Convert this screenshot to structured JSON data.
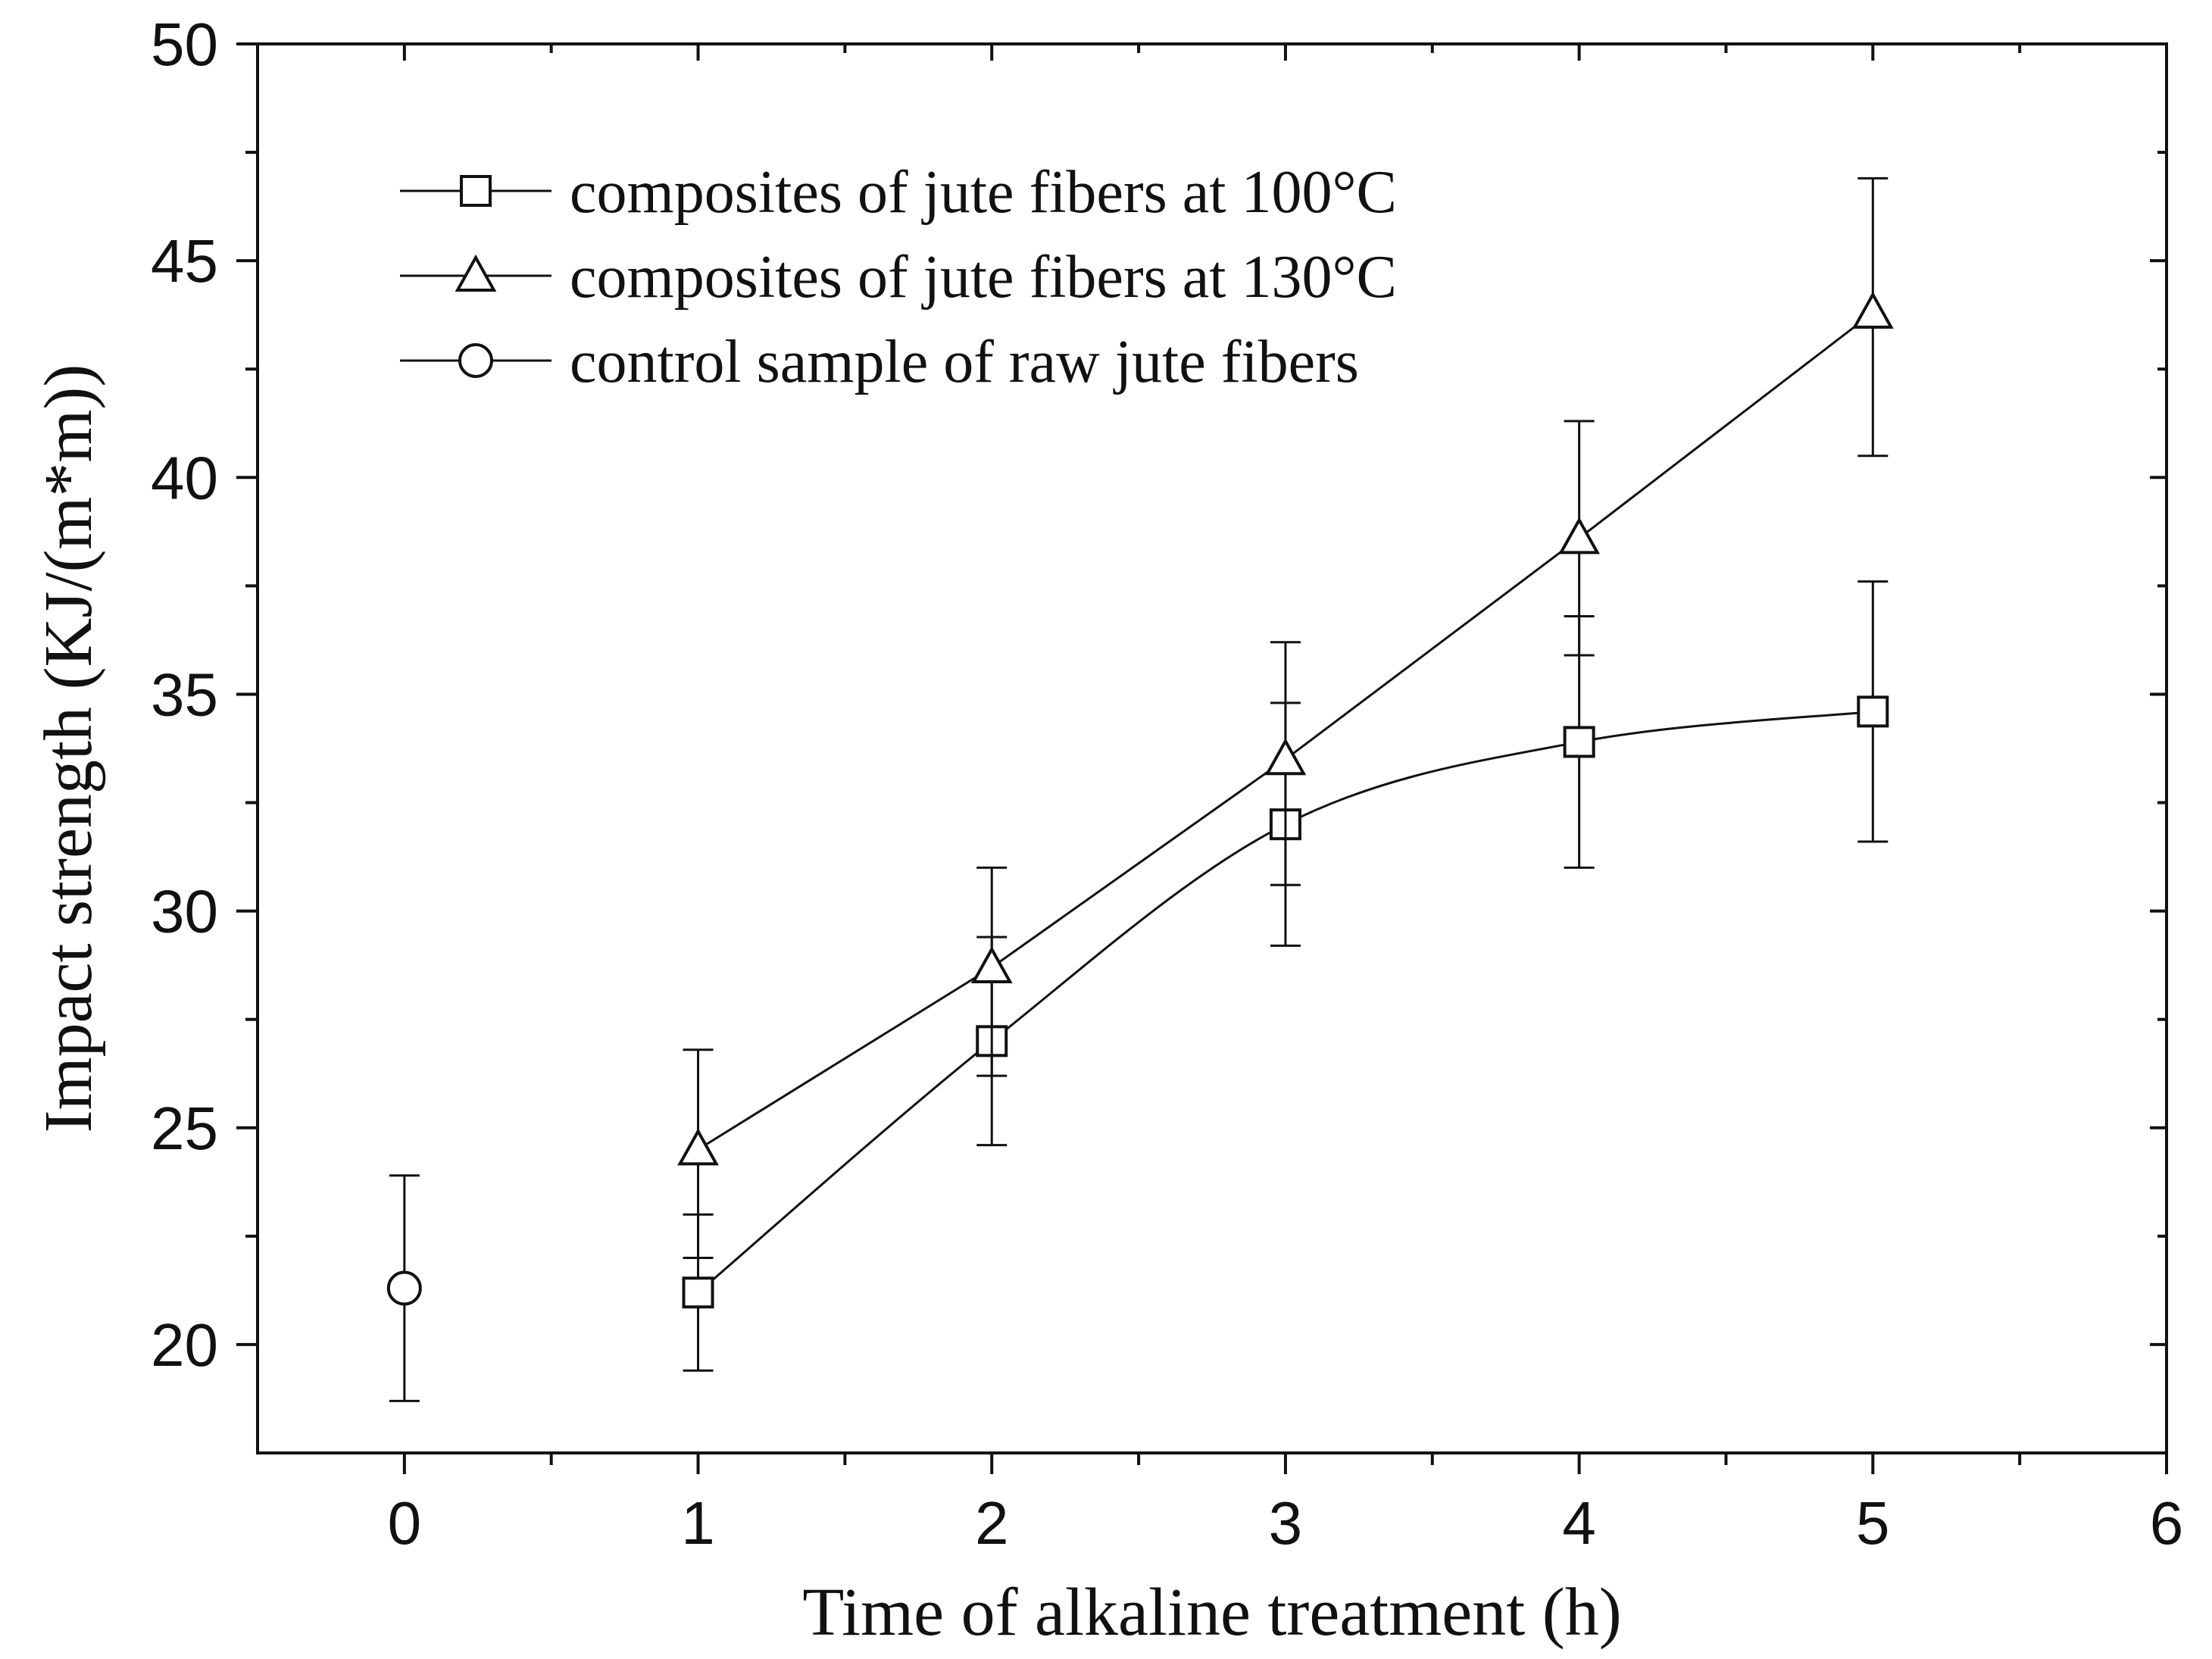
{
  "chart_data": {
    "type": "line",
    "title": "",
    "xlabel": "Time of alkaline treatment (h)",
    "ylabel": "Impact strength (KJ/(m*m))",
    "xlim": [
      -0.5,
      6
    ],
    "ylim": [
      17.5,
      50
    ],
    "xticks": [
      0,
      1,
      2,
      3,
      4,
      5,
      6
    ],
    "yticks": [
      20,
      25,
      30,
      35,
      40,
      45,
      50
    ],
    "legend_position": "top-left",
    "series": [
      {
        "name": "composites of jute fibers at 100°C",
        "marker": "square",
        "smooth": true,
        "x": [
          1,
          2,
          3,
          4,
          5
        ],
        "y": [
          21.2,
          27.0,
          32.0,
          33.9,
          34.6
        ],
        "err_low": [
          19.4,
          24.6,
          29.2,
          31.0,
          31.6
        ],
        "err_high": [
          23.0,
          29.4,
          34.8,
          36.8,
          37.6
        ]
      },
      {
        "name": "composites of jute fibers at 130°C",
        "marker": "triangle",
        "smooth": false,
        "x": [
          1,
          2,
          3,
          4,
          5
        ],
        "y": [
          24.5,
          28.7,
          33.5,
          38.6,
          43.8
        ],
        "err_low": [
          22.0,
          26.2,
          30.6,
          35.9,
          40.5
        ],
        "err_high": [
          26.8,
          31.0,
          36.2,
          41.3,
          46.9
        ]
      },
      {
        "name": "control sample of raw jute fibers",
        "marker": "circle",
        "smooth": false,
        "x": [
          0
        ],
        "y": [
          21.3
        ],
        "err_low": [
          18.7
        ],
        "err_high": [
          23.9
        ]
      }
    ]
  }
}
